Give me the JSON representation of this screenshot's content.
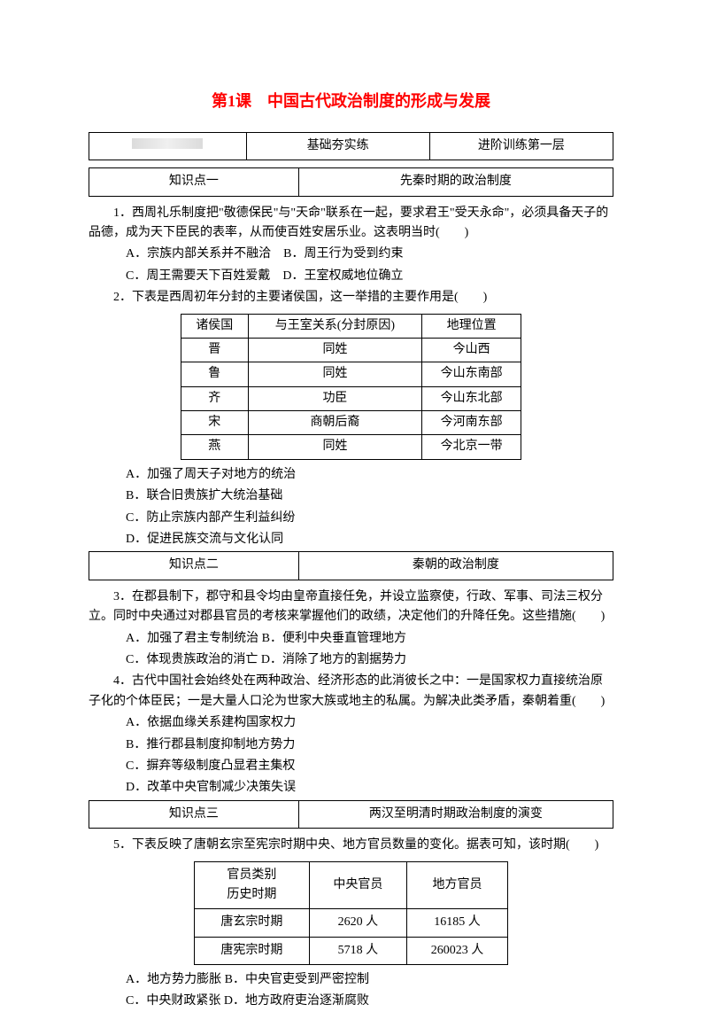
{
  "title": "第1课　中国古代政治制度的形成与发展",
  "header": {
    "col2": "基础夯实练",
    "col3": "进阶训练第一层"
  },
  "section1": {
    "label": "知识点一",
    "topic": "先秦时期的政治制度"
  },
  "q1": {
    "text": "1．西周礼乐制度把\"敬德保民\"与\"天命\"联系在一起，要求君王\"受天永命\"，必须具备天子的品德，成为天下臣民的表率，从而使百姓安居乐业。这表明当时(　　)",
    "optA": "A．宗族内部关系并不融洽",
    "optB": "B．周王行为受到约束",
    "optC": "C．周王需要天下百姓爱戴",
    "optD": "D．王室权威地位确立"
  },
  "q2": {
    "text": "2．下表是西周初年分封的主要诸侯国，这一举措的主要作用是(　　)",
    "table": {
      "headers": [
        "诸侯国",
        "与王室关系(分封原因)",
        "地理位置"
      ],
      "rows": [
        [
          "晋",
          "同姓",
          "今山西"
        ],
        [
          "鲁",
          "同姓",
          "今山东南部"
        ],
        [
          "齐",
          "功臣",
          "今山东北部"
        ],
        [
          "宋",
          "商朝后裔",
          "今河南东部"
        ],
        [
          "燕",
          "同姓",
          "今北京一带"
        ]
      ]
    },
    "optA": "A．加强了周天子对地方的统治",
    "optB": "B．联合旧贵族扩大统治基础",
    "optC": "C．防止宗族内部产生利益纠纷",
    "optD": "D．促进民族交流与文化认同"
  },
  "section2": {
    "label": "知识点二",
    "topic": "秦朝的政治制度"
  },
  "q3": {
    "text": "3．在郡县制下，郡守和县令均由皇帝直接任免，并设立监察使，行政、军事、司法三权分立。同时中央通过对郡县官员的考核来掌握他们的政绩，决定他们的升降任免。这些措施(　　)",
    "optA": "A．加强了君主专制统治",
    "optB": "B．便利中央垂直管理地方",
    "optC": "C．体现贵族政治的消亡",
    "optD": "D．消除了地方的割据势力"
  },
  "q4": {
    "text": "4．古代中国社会始终处在两种政治、经济形态的此消彼长之中：一是国家权力直接统治原子化的个体臣民；一是大量人口沦为世家大族或地主的私属。为解决此类矛盾，秦朝着重(　　)",
    "optA": "A．依据血缘关系建构国家权力",
    "optB": "B．推行郡县制度抑制地方势力",
    "optC": "C．摒弃等级制度凸显君主集权",
    "optD": "D．改革中央官制减少决策失误"
  },
  "section3": {
    "label": "知识点三",
    "topic": "两汉至明清时期政治制度的演变"
  },
  "q5": {
    "text": "5．下表反映了唐朝玄宗至宪宗时期中央、地方官员数量的变化。据表可知，该时期(　　)",
    "table": {
      "h1a": "官员类别",
      "h1b": "历史时期",
      "h2": "中央官员",
      "h3": "地方官员",
      "rows": [
        [
          "唐玄宗时期",
          "2620 人",
          "16185 人"
        ],
        [
          "唐宪宗时期",
          "5718 人",
          "260023 人"
        ]
      ]
    },
    "optA": "A．地方势力膨胀",
    "optB": "B．中央官吏受到严密控制",
    "optC": "C．中央财政紧张",
    "optD": "D．地方政府吏治逐渐腐败"
  }
}
